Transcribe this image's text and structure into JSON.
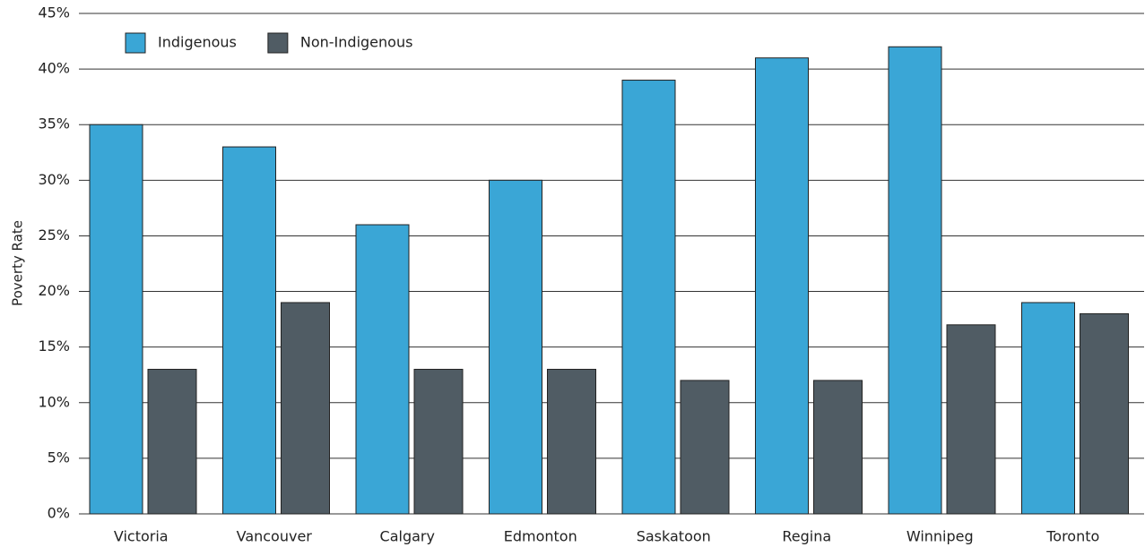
{
  "chart_data": {
    "type": "bar",
    "ylabel": "Poverty Rate",
    "categories": [
      "Victoria",
      "Vancouver",
      "Calgary",
      "Edmonton",
      "Saskatoon",
      "Regina",
      "Winnipeg",
      "Toronto"
    ],
    "series": [
      {
        "name": "Indigenous",
        "color": "#3aa6d6",
        "values": [
          35,
          33,
          26,
          30,
          39,
          41,
          42,
          19
        ]
      },
      {
        "name": "Non-Indigenous",
        "color": "#505c64",
        "values": [
          13,
          19,
          13,
          13,
          12,
          12,
          17,
          18
        ]
      }
    ],
    "ylim": [
      0,
      45
    ],
    "yticks": [
      {
        "value": 0,
        "label": "0%"
      },
      {
        "value": 5,
        "label": "5%"
      },
      {
        "value": 10,
        "label": "10%"
      },
      {
        "value": 15,
        "label": "15%"
      },
      {
        "value": 20,
        "label": "20%"
      },
      {
        "value": 25,
        "label": "25%"
      },
      {
        "value": 30,
        "label": "30%"
      },
      {
        "value": 35,
        "label": "35%"
      },
      {
        "value": 40,
        "label": "40%"
      },
      {
        "value": 45,
        "label": "45%"
      }
    ],
    "grid": true,
    "legend": "upper left"
  }
}
